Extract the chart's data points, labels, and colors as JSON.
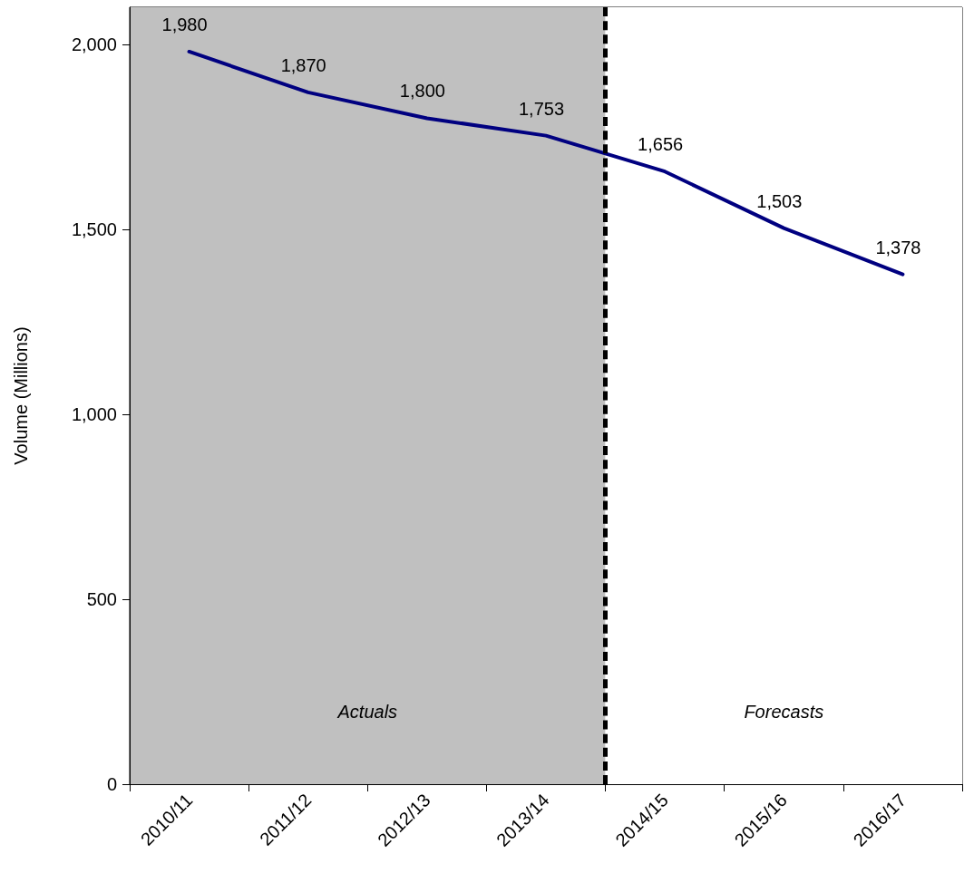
{
  "chart_data": {
    "type": "line",
    "ylabel": "Volume (Millions)",
    "categories": [
      "2010/11",
      "2011/12",
      "2012/13",
      "2013/14",
      "2014/15",
      "2015/16",
      "2016/17"
    ],
    "series": [
      {
        "color": "#000080",
        "values": [
          1980,
          1870,
          1800,
          1753,
          1656,
          1503,
          1378
        ],
        "value_labels": [
          "1,980",
          "1,870",
          "1,800",
          "1,753",
          "1,656",
          "1,503",
          "1,378"
        ]
      }
    ],
    "ylim": [
      0,
      2100
    ],
    "yticks": [
      {
        "value": 0,
        "label": "0"
      },
      {
        "value": 500,
        "label": "500"
      },
      {
        "value": 1000,
        "label": "1,000"
      },
      {
        "value": 1500,
        "label": "1,500"
      },
      {
        "value": 2000,
        "label": "2,000"
      }
    ],
    "bands": [
      {
        "axis": "x",
        "from": "2010/11",
        "to": "2013/14",
        "label": "Actuals",
        "color": "#c0c0c0"
      },
      {
        "axis": "x",
        "from": "2014/15",
        "to": "2016/17",
        "label": "Forecasts",
        "color": "#ffffff"
      }
    ],
    "grid": false,
    "marker": "none",
    "line_style": "solid"
  }
}
